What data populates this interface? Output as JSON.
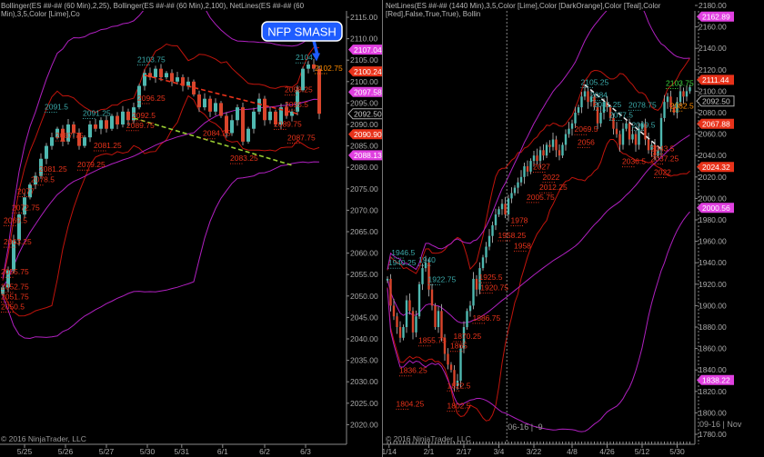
{
  "colors": {
    "bg": "#000000",
    "up": "#4fb8b0",
    "down": "#d9452c",
    "wick": "#9a9a9a",
    "band_fast": "#c0140c",
    "band_slow": "#b020c0",
    "axis": "#8a8a8a",
    "text": "#b8b8b8",
    "callout": "#1e5cff"
  },
  "chart_data": [
    {
      "type": "candlestick",
      "title": "Bollinger(ES ##-## (60 Min),2,25), Bollinger(ES ##-## (60 Min),2,100), NetLines(ES ##-## (60 Min),3,5,Color [Lime],Co",
      "copyright": "© 2016 NinjaTrader, LLC",
      "ylim": [
        2017,
        2117
      ],
      "yticks": [
        2115,
        2110,
        2105,
        2100,
        2095,
        2090,
        2085,
        2080,
        2075,
        2070,
        2065,
        2060,
        2055,
        2050,
        2045,
        2040,
        2035,
        2030,
        2025,
        2020
      ],
      "xticks": [
        {
          "label": "5/25",
          "bar": 4
        },
        {
          "label": "5/26",
          "bar": 11.5
        },
        {
          "label": "5/27",
          "bar": 19
        },
        {
          "label": "5/30",
          "bar": 26.5
        },
        {
          "label": "5/31",
          "bar": 32.8
        },
        {
          "label": "6/1",
          "bar": 40.3
        },
        {
          "label": "6/2",
          "bar": 48
        },
        {
          "label": "6/3",
          "bar": 55.5
        }
      ],
      "closes": [
        2052,
        2056,
        2063,
        2069,
        2073,
        2076,
        2078,
        2082,
        2085,
        2087,
        2089,
        2086,
        2090,
        2088,
        2085,
        2087,
        2090,
        2089,
        2091,
        2089,
        2092,
        2090,
        2093,
        2091,
        2094,
        2099,
        2102,
        2101,
        2103,
        2101,
        2102,
        2100,
        2101,
        2099,
        2100,
        2097,
        2094,
        2096,
        2093,
        2095,
        2092,
        2088,
        2091,
        2094,
        2086,
        2089,
        2093,
        2096,
        2091,
        2093,
        2090,
        2094,
        2092,
        2093,
        2098,
        2103,
        2104,
        2103,
        2092.5
      ],
      "price_markers": [
        {
          "value": "2107.04",
          "color": "#e040e0"
        },
        {
          "value": "2100.24",
          "color": "#e8321a"
        },
        {
          "value": "2097.58",
          "color": "#e040e0"
        },
        {
          "value": "2092.50",
          "color": "outline"
        },
        {
          "value": "2090.90",
          "color": "#e8321a"
        },
        {
          "value": "2088.13",
          "color": "#e040e0"
        }
      ],
      "labels": [
        {
          "text": "2103.75",
          "bar": 26,
          "price": 2104.5,
          "color": "#3aa8a8"
        },
        {
          "text": "2102.75",
          "bar": 58.5,
          "price": 2102.5,
          "color": "#ff8c00"
        },
        {
          "text": "2104",
          "bar": 55,
          "price": 2105,
          "color": "#3aa8a8"
        },
        {
          "text": "2096.25",
          "bar": 26,
          "price": 2095.5,
          "color": "#e8321a"
        },
        {
          "text": "2098.25",
          "bar": 53,
          "price": 2097.5,
          "color": "#e8321a"
        },
        {
          "text": "2092.5",
          "bar": 25,
          "price": 2091.5,
          "color": "#e8321a"
        },
        {
          "text": "2089.75",
          "bar": 24,
          "price": 2089.2,
          "color": "#e8321a"
        },
        {
          "text": "2091.5",
          "bar": 9,
          "price": 2093.5,
          "color": "#3aa8a8"
        },
        {
          "text": "2091.25",
          "bar": 16,
          "price": 2092,
          "color": "#3aa8a8"
        },
        {
          "text": "2087.75",
          "bar": 11,
          "price": 2086.8,
          "color": "#e8321a"
        },
        {
          "text": "2081.25",
          "bar": 18,
          "price": 2084.5,
          "color": "#e8321a"
        },
        {
          "text": "2079.25",
          "bar": 15,
          "price": 2080,
          "color": "#e8321a"
        },
        {
          "text": "2081.25",
          "bar": 8,
          "price": 2079,
          "color": "#e8321a"
        },
        {
          "text": "2078.5",
          "bar": 6.5,
          "price": 2076.5,
          "color": "#e8321a"
        },
        {
          "text": "2077",
          "bar": 4,
          "price": 2073.8,
          "color": "#e8321a"
        },
        {
          "text": "2072.75",
          "bar": 3,
          "price": 2070,
          "color": "#e8321a"
        },
        {
          "text": "2069.5",
          "bar": 1.5,
          "price": 2067,
          "color": "#e8321a"
        },
        {
          "text": "2063.25",
          "bar": 1.5,
          "price": 2062,
          "color": "#e8321a"
        },
        {
          "text": "2055.75",
          "bar": 1,
          "price": 2055,
          "color": "#e8321a"
        },
        {
          "text": "2052.75",
          "bar": 0.5,
          "price": 2051.5,
          "color": "#e8321a"
        },
        {
          "text": "2051.75",
          "bar": 0.5,
          "price": 2050.3,
          "color": "#e8321a"
        },
        {
          "text": "2050.5",
          "bar": 0,
          "price": 2049,
          "color": "#e8321a"
        },
        {
          "text": "2084.25",
          "bar": 38,
          "price": 2087.3,
          "color": "#e8321a"
        },
        {
          "text": "2083.25",
          "bar": 43,
          "price": 2081.5,
          "color": "#e8321a"
        },
        {
          "text": "2087.75",
          "bar": 53.5,
          "price": 2086.3,
          "color": "#e8321a"
        },
        {
          "text": "2089.75",
          "bar": 51,
          "price": 2089.5,
          "color": "#e8321a"
        },
        {
          "text": "2095.5",
          "bar": 53,
          "price": 2094,
          "color": "#e8321a"
        }
      ],
      "trendlines": [
        {
          "from": {
            "bar": 26,
            "price": 2101.5
          },
          "to": {
            "bar": 54,
            "price": 2092.5
          },
          "color": "#e8321a"
        },
        {
          "from": {
            "bar": 24,
            "price": 2091.5
          },
          "to": {
            "bar": 53,
            "price": 2080.5
          },
          "color": "#9acd32"
        }
      ],
      "annotation": {
        "text": "NFP SMASH",
        "bar": 57.5,
        "price": 2104.5
      }
    },
    {
      "type": "candlestick",
      "title": "NetLines(ES ##-## (1440 Min),3,5,Color [Lime],Color [DarkOrange],Color [Teal],Color [Red],False,True,True), Bollin",
      "copyright": "© 2016 NinjaTrader, LLC",
      "ylim": [
        1775,
        2185
      ],
      "yticks": [
        2180,
        2160,
        2140,
        2120,
        2100,
        2080,
        2060,
        2040,
        2020,
        2000,
        1980,
        1960,
        1940,
        1920,
        1900,
        1880,
        1860,
        1840,
        1820,
        1800,
        1780
      ],
      "xticks": [
        {
          "label": "1/14",
          "bar": 0.5
        },
        {
          "label": "2/1",
          "bar": 13
        },
        {
          "label": "2/17",
          "bar": 24
        },
        {
          "label": "3/4",
          "bar": 35
        },
        {
          "label": "3/22",
          "bar": 46
        },
        {
          "label": "4/8",
          "bar": 58
        },
        {
          "label": "4/26",
          "bar": 69
        },
        {
          "label": "5/12",
          "bar": 80
        },
        {
          "label": "5/30",
          "bar": 91
        }
      ],
      "closes": [
        1925,
        1900,
        1890,
        1880,
        1870,
        1880,
        1905,
        1895,
        1875,
        1890,
        1920,
        1935,
        1940,
        1915,
        1900,
        1880,
        1895,
        1870,
        1855,
        1845,
        1840,
        1825,
        1830,
        1860,
        1880,
        1895,
        1900,
        1925,
        1915,
        1935,
        1945,
        1955,
        1965,
        1975,
        1985,
        1990,
        1995,
        1985,
        2000,
        2005,
        2010,
        2015,
        2020,
        2030,
        2025,
        2035,
        2040,
        2035,
        2045,
        2040,
        2050,
        2048,
        2055,
        2045,
        2040,
        2050,
        2060,
        2065,
        2070,
        2080,
        2085,
        2095,
        2100,
        2090,
        2095,
        2085,
        2070,
        2080,
        2090,
        2085,
        2075,
        2065,
        2060,
        2050,
        2065,
        2070,
        2055,
        2060,
        2050,
        2065,
        2070,
        2055,
        2045,
        2050,
        2040,
        2045,
        2075,
        2090,
        2095,
        2085,
        2080,
        2090,
        2100,
        2095,
        2100,
        2103.75
      ],
      "price_markers": [
        {
          "value": "2162.89",
          "color": "#e040e0"
        },
        {
          "value": "2111.44",
          "color": "#e8321a"
        },
        {
          "value": "2092.50",
          "color": "outline"
        },
        {
          "value": "2067.88",
          "color": "#e8321a"
        },
        {
          "value": "2024.32",
          "color": "#e8321a"
        },
        {
          "value": "2000.56",
          "color": "#e040e0"
        },
        {
          "value": "1838.22",
          "color": "#e040e0"
        }
      ],
      "labels": [
        {
          "text": "2103.75",
          "bar": 95.5,
          "price": 2105,
          "color": "#3cd23c"
        },
        {
          "text": "2082.5",
          "bar": 93.5,
          "price": 2084,
          "color": "#ff8c00"
        },
        {
          "text": "2105.25",
          "bar": 63,
          "price": 2106,
          "color": "#3aa8a8"
        },
        {
          "text": "2084",
          "bar": 66,
          "price": 2094,
          "color": "#3aa8a8"
        },
        {
          "text": "2081.25",
          "bar": 67,
          "price": 2090,
          "color": "#3aa8a8"
        },
        {
          "text": "2077.5",
          "bar": 72,
          "price": 2077,
          "color": "#3aa8a8"
        },
        {
          "text": "2078.75",
          "bar": 78,
          "price": 2078,
          "color": "#3aa8a8"
        },
        {
          "text": "2069.5",
          "bar": 79,
          "price": 2067,
          "color": "#3aa8a8"
        },
        {
          "text": "2069.5",
          "bar": 61,
          "price": 2062,
          "color": "#e8321a"
        },
        {
          "text": "2056",
          "bar": 62,
          "price": 2050,
          "color": "#e8321a"
        },
        {
          "text": "2043.5",
          "bar": 85,
          "price": 2044,
          "color": "#e8321a"
        },
        {
          "text": "2037.25",
          "bar": 85,
          "price": 2038,
          "color": "#e8321a"
        },
        {
          "text": "2036.5",
          "bar": 76,
          "price": 2032,
          "color": "#e8321a"
        },
        {
          "text": "2022",
          "bar": 86,
          "price": 2022,
          "color": "#e8321a"
        },
        {
          "text": "2027",
          "bar": 48,
          "price": 2027,
          "color": "#e8321a"
        },
        {
          "text": "2022",
          "bar": 51,
          "price": 2020,
          "color": "#e8321a"
        },
        {
          "text": "2012.25",
          "bar": 50,
          "price": 2012,
          "color": "#e8321a"
        },
        {
          "text": "2005.75",
          "bar": 46,
          "price": 2003,
          "color": "#e8321a"
        },
        {
          "text": "1978",
          "bar": 41,
          "price": 1977,
          "color": "#e8321a"
        },
        {
          "text": "1958.25",
          "bar": 37,
          "price": 1963,
          "color": "#e8321a"
        },
        {
          "text": "1958",
          "bar": 42,
          "price": 1956,
          "color": "#e8321a"
        },
        {
          "text": "1946.5",
          "bar": 3.5,
          "price": 1947,
          "color": "#3aa8a8"
        },
        {
          "text": "1940.25",
          "bar": 2.5,
          "price": 1940,
          "color": "#3aa8a8"
        },
        {
          "text": "1940",
          "bar": 12,
          "price": 1940,
          "color": "#3aa8a8"
        },
        {
          "text": "1922.75",
          "bar": 15,
          "price": 1922,
          "color": "#3aa8a8"
        },
        {
          "text": "1925.5",
          "bar": 31,
          "price": 1924,
          "color": "#e8321a"
        },
        {
          "text": "1920.75",
          "bar": 31.5,
          "price": 1918.5,
          "color": "#e8321a"
        },
        {
          "text": "1886.75",
          "bar": 29,
          "price": 1886,
          "color": "#e8321a"
        },
        {
          "text": "1870.25",
          "bar": 23,
          "price": 1869,
          "color": "#e8321a"
        },
        {
          "text": "1865",
          "bar": 22,
          "price": 1865,
          "color": "#e8321a"
        },
        {
          "text": "1855.75",
          "bar": 12,
          "price": 1865,
          "color": "#e8321a"
        },
        {
          "text": "1836.25",
          "bar": 6,
          "price": 1837,
          "color": "#e8321a"
        },
        {
          "text": "1822.5",
          "bar": 21,
          "price": 1823,
          "color": "#e8321a"
        },
        {
          "text": "1804.25",
          "bar": 5,
          "price": 1806,
          "color": "#e8321a"
        },
        {
          "text": "1802.5",
          "bar": 21,
          "price": 1804,
          "color": "#e8321a"
        }
      ],
      "trendlines": [
        {
          "from": {
            "bar": 62,
            "price": 2106
          },
          "to": {
            "bar": 86,
            "price": 2046
          },
          "color": "#e6e6e6"
        }
      ],
      "session_markers": [
        {
          "text": "06-16 | -9",
          "bar": 37.5
        },
        {
          "text": "09-16 | Nov",
          "bar": 98
        }
      ]
    }
  ]
}
